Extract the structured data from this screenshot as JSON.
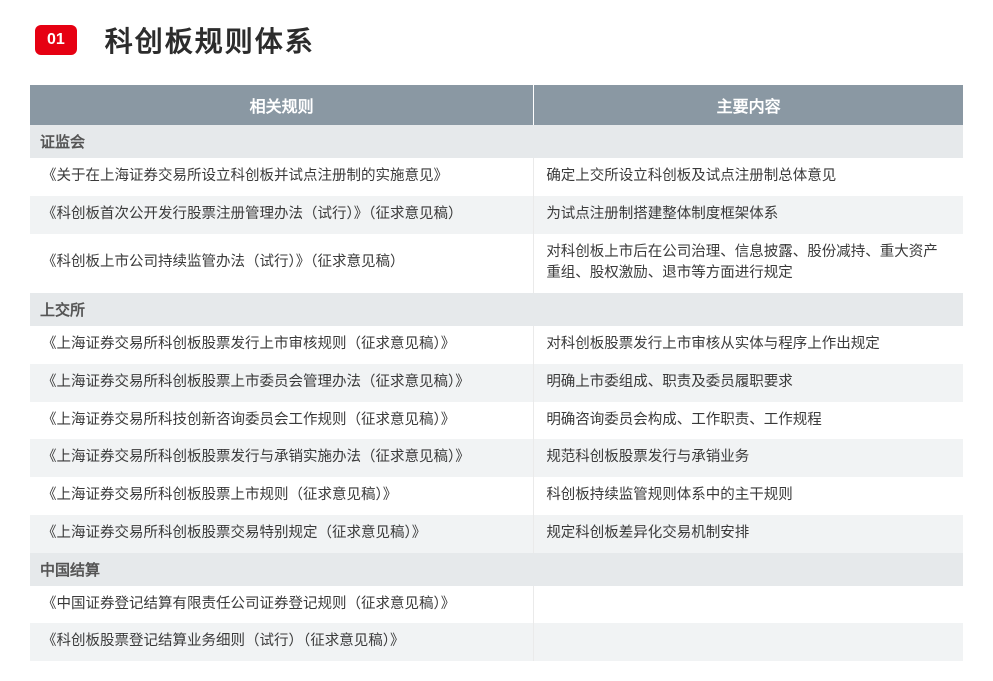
{
  "header": {
    "badge": "01",
    "title": "科创板规则体系"
  },
  "table": {
    "columns": [
      "相关规则",
      "主要内容"
    ],
    "col_widths": [
      "54%",
      "46%"
    ],
    "header_bg": "#8a98a3",
    "header_fg": "#ffffff",
    "section_bg": "#e6e9eb",
    "alt_row_bg": "#f1f3f4",
    "text_color": "#3a3a3a",
    "sections": [
      {
        "label": "证监会",
        "rows": [
          {
            "rule": "《关于在上海证券交易所设立科创板并试点注册制的实施意见》",
            "content": "确定上交所设立科创板及试点注册制总体意见",
            "alt": false
          },
          {
            "rule": "《科创板首次公开发行股票注册管理办法（试行）》（征求意见稿）",
            "content": "为试点注册制搭建整体制度框架体系",
            "alt": true
          },
          {
            "rule": "《科创板上市公司持续监管办法（试行）》（征求意见稿）",
            "content": "对科创板上市后在公司治理、信息披露、股份减持、重大资产重组、股权激励、退市等方面进行规定",
            "alt": false
          }
        ]
      },
      {
        "label": "上交所",
        "rows": [
          {
            "rule": "《上海证券交易所科创板股票发行上市审核规则（征求意见稿）》",
            "content": "对科创板股票发行上市审核从实体与程序上作出规定",
            "alt": false
          },
          {
            "rule": "《上海证券交易所科创板股票上市委员会管理办法（征求意见稿）》",
            "content": "明确上市委组成、职责及委员履职要求",
            "alt": true
          },
          {
            "rule": "《上海证券交易所科技创新咨询委员会工作规则（征求意见稿）》",
            "content": "明确咨询委员会构成、工作职责、工作规程",
            "alt": false
          },
          {
            "rule": "《上海证券交易所科创板股票发行与承销实施办法（征求意见稿）》",
            "content": "规范科创板股票发行与承销业务",
            "alt": true
          },
          {
            "rule": "《上海证券交易所科创板股票上市规则（征求意见稿）》",
            "content": "科创板持续监管规则体系中的主干规则",
            "alt": false
          },
          {
            "rule": "《上海证券交易所科创板股票交易特别规定（征求意见稿）》",
            "content": "规定科创板差异化交易机制安排",
            "alt": true
          }
        ]
      },
      {
        "label": "中国结算",
        "rows": [
          {
            "rule": "《中国证券登记结算有限责任公司证券登记规则（征求意见稿）》",
            "content": "",
            "alt": false
          },
          {
            "rule": "《科创板股票登记结算业务细则（试行）（征求意见稿）》",
            "content": "",
            "alt": true
          }
        ]
      }
    ]
  },
  "colors": {
    "badge_bg": "#e60012",
    "badge_fg": "#ffffff",
    "title_color": "#2c2c2c"
  }
}
